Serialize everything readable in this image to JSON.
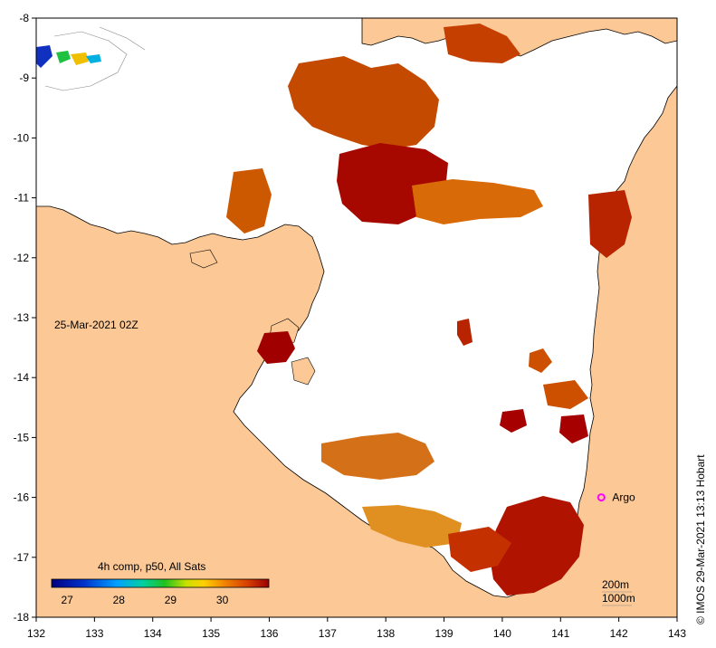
{
  "map": {
    "date_label": "25-Mar-2021 02Z",
    "credit": "© IMOS 29-Mar-2021 13:13 Hobart",
    "argo_label": "Argo",
    "contour_labels": [
      "200m",
      "1000m"
    ],
    "x_ticks": [
      "132",
      "133",
      "134",
      "135",
      "136",
      "137",
      "138",
      "139",
      "140",
      "141",
      "142",
      "143"
    ],
    "y_ticks": [
      "-8",
      "-9",
      "-10",
      "-11",
      "-12",
      "-13",
      "-14",
      "-15",
      "-16",
      "-17",
      "-18"
    ],
    "lon_range": [
      132,
      143
    ],
    "lat_range": [
      -18,
      -8
    ],
    "argo_position": {
      "lon": 141.7,
      "lat": -16.0
    },
    "colors": {
      "land": "#fbc896",
      "ocean": "#ffffff",
      "argo": "#ff00ff"
    }
  },
  "colorbar": {
    "title": "4h comp, p50, All Sats",
    "labels": [
      "27",
      "28",
      "29",
      "30"
    ],
    "range": [
      26.7,
      30.9
    ]
  }
}
